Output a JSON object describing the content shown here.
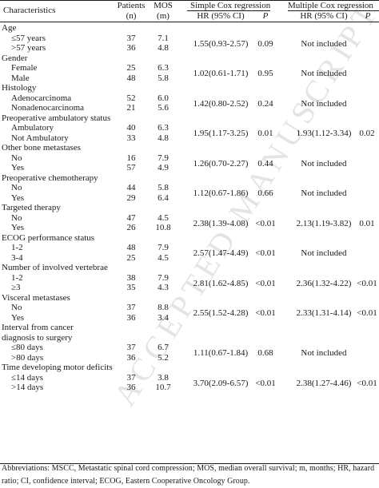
{
  "watermark": "ACCEPTED MANUSCRIPT",
  "header": {
    "characteristics": "Characteristics",
    "patients_line1": "Patients",
    "patients_line2": "(n)",
    "mos_line1": "MOS",
    "mos_line2": "(m)",
    "simple_group": "Simple Cox regression",
    "simple_hr": "HR (95% CI)",
    "simple_p": "P",
    "multiple_group": "Multiple Cox regression",
    "multiple_hr": "HR (95% CI)",
    "multiple_p": "P"
  },
  "groups": [
    {
      "name": "Age",
      "rows": [
        {
          "label": "≤57 years",
          "n": "37",
          "mos": "7.1"
        },
        {
          "label": ">57 years",
          "n": "36",
          "mos": "4.8"
        }
      ],
      "simple_hr": "1.55(0.93-2.57)",
      "simple_p": "0.09",
      "multiple_hr": "Not included",
      "multiple_p": ""
    },
    {
      "name": "Gender",
      "rows": [
        {
          "label": "Female",
          "n": "25",
          "mos": "6.3"
        },
        {
          "label": "Male",
          "n": "48",
          "mos": "5.8"
        }
      ],
      "simple_hr": "1.02(0.61-1.71)",
      "simple_p": "0.95",
      "multiple_hr": "Not included",
      "multiple_p": ""
    },
    {
      "name": "Histology",
      "rows": [
        {
          "label": "Adenocarcinoma",
          "n": "52",
          "mos": "6.0"
        },
        {
          "label": "Nonadenocarcinoma",
          "n": "21",
          "mos": "5.6"
        }
      ],
      "simple_hr": "1.42(0.80-2.52)",
      "simple_p": "0.24",
      "multiple_hr": "Not included",
      "multiple_p": ""
    },
    {
      "name": "Preoperative ambulatory status",
      "rows": [
        {
          "label": "Ambulatory",
          "n": "40",
          "mos": "6.3"
        },
        {
          "label": "Not Ambulatory",
          "n": "33",
          "mos": "4.8"
        }
      ],
      "simple_hr": "1.95(1.17-3.25)",
      "simple_p": "0.01",
      "multiple_hr": "1.93(1.12-3.34)",
      "multiple_p": "0.02"
    },
    {
      "name": "Other bone metastases",
      "rows": [
        {
          "label": "No",
          "n": "16",
          "mos": "7.9"
        },
        {
          "label": "Yes",
          "n": "57",
          "mos": "4.9"
        }
      ],
      "simple_hr": "1.26(0.70-2.27)",
      "simple_p": "0.44",
      "multiple_hr": "Not included",
      "multiple_p": ""
    },
    {
      "name": "Preoperative chemotherapy",
      "rows": [
        {
          "label": "No",
          "n": "44",
          "mos": "5.8"
        },
        {
          "label": "Yes",
          "n": "29",
          "mos": "6.4"
        }
      ],
      "simple_hr": "1.12(0.67-1.86)",
      "simple_p": "0.66",
      "multiple_hr": "Not included",
      "multiple_p": ""
    },
    {
      "name": "Targeted therapy",
      "rows": [
        {
          "label": "No",
          "n": "47",
          "mos": "4.5"
        },
        {
          "label": "Yes",
          "n": "26",
          "mos": "10.8"
        }
      ],
      "simple_hr": "2.38(1.39-4.08)",
      "simple_p": "<0.01",
      "multiple_hr": "2.13(1.19-3.82)",
      "multiple_p": "0.01"
    },
    {
      "name": "ECOG performance status",
      "rows": [
        {
          "label": "1-2",
          "n": "48",
          "mos": "7.9"
        },
        {
          "label": "3-4",
          "n": "25",
          "mos": "4.5"
        }
      ],
      "simple_hr": "2.57(1.47-4.49)",
      "simple_p": "<0.01",
      "multiple_hr": "Not included",
      "multiple_p": ""
    },
    {
      "name": "Number of involved vertebrae",
      "rows": [
        {
          "label": "1-2",
          "n": "38",
          "mos": "7.9"
        },
        {
          "label": "≥3",
          "n": "35",
          "mos": "4.3"
        }
      ],
      "simple_hr": "2.81(1.62-4.85)",
      "simple_p": "<0.01",
      "multiple_hr": "2.36(1.32-4.22)",
      "multiple_p": "<0.01"
    },
    {
      "name": "Visceral metastases",
      "rows": [
        {
          "label": "No",
          "n": "37",
          "mos": "8.8"
        },
        {
          "label": "Yes",
          "n": "36",
          "mos": "3.4"
        }
      ],
      "simple_hr": "2.55(1.52-4.28)",
      "simple_p": "<0.01",
      "multiple_hr": "2.33(1.31-4.14)",
      "multiple_p": "<0.01"
    },
    {
      "name": "Interval from cancer",
      "name2": "diagnosis to surgery",
      "rows": [
        {
          "label": "≤80 days",
          "n": "37",
          "mos": "6.7"
        },
        {
          "label": ">80 days",
          "n": "36",
          "mos": "5.2"
        }
      ],
      "simple_hr": "1.11(0.67-1.84)",
      "simple_p": "0.68",
      "multiple_hr": "Not included",
      "multiple_p": ""
    },
    {
      "name": "Time developing motor deficits",
      "rows": [
        {
          "label": "≤14 days",
          "n": "37",
          "mos": "3.8"
        },
        {
          "label": ">14 days",
          "n": "36",
          "mos": "10.7"
        }
      ],
      "simple_hr": "3.70(2.09-6.57)",
      "simple_p": "<0.01",
      "multiple_hr": "2.38(1.27-4.46)",
      "multiple_p": "<0.01"
    }
  ],
  "footnote": "Abbreviations: MSCC, Metastatic spinal cord compression; MOS, median overall survival; m, months; HR, hazard ratio; CI, confidence interval; ECOG, Eastern Cooperative Oncology Group."
}
